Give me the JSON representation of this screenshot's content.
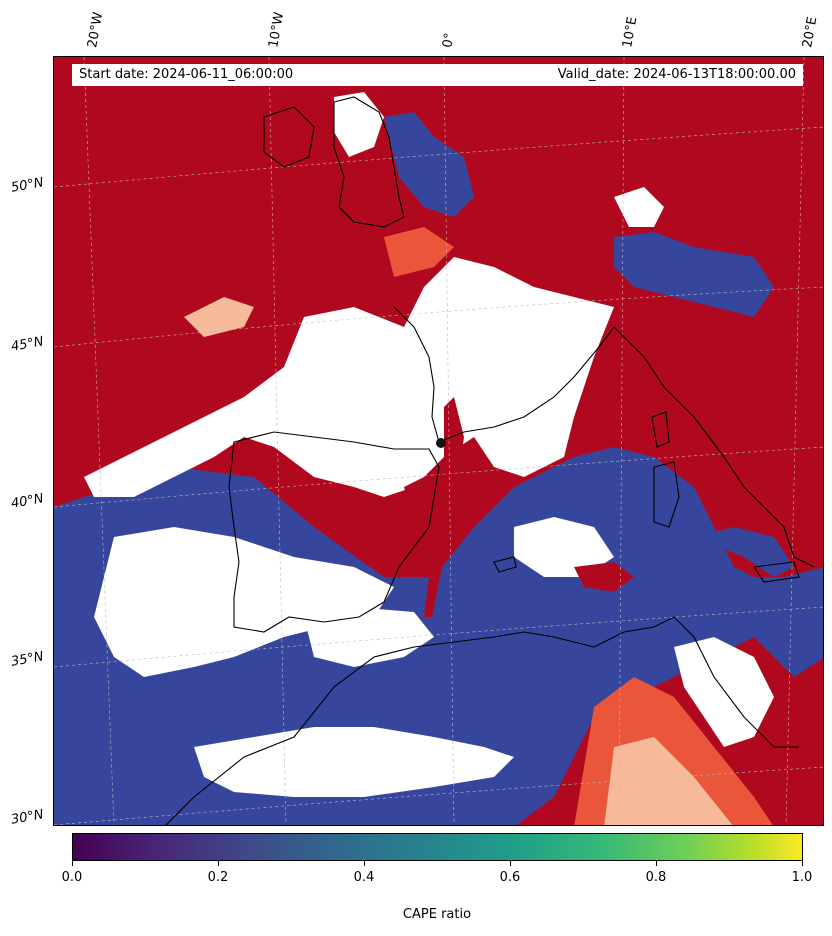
{
  "header": {
    "start_date": "Start date: 2024-06-11_06:00:00",
    "valid_date": "Valid_date: 2024-06-13T18:00:00.00"
  },
  "map": {
    "lon_labels": [
      "20°W",
      "10°W",
      "0°",
      "10°E",
      "20°E"
    ],
    "lat_labels": [
      "50°N",
      "45°N",
      "40°N",
      "35°N",
      "30°N"
    ],
    "colors": {
      "high": "#b0091f",
      "mid_warm": "#e9563a",
      "warm_light": "#f6b99a",
      "none": "#ffffff",
      "cool_light": "#a8c5e0",
      "low": "#36469c",
      "coastline": "#000000",
      "graticule": "#bbbbbb"
    }
  },
  "colorbar": {
    "title": "CAPE ratio",
    "ticks": [
      "0.0",
      "0.2",
      "0.4",
      "0.6",
      "0.8",
      "1.0"
    ],
    "colormap": "viridis"
  }
}
